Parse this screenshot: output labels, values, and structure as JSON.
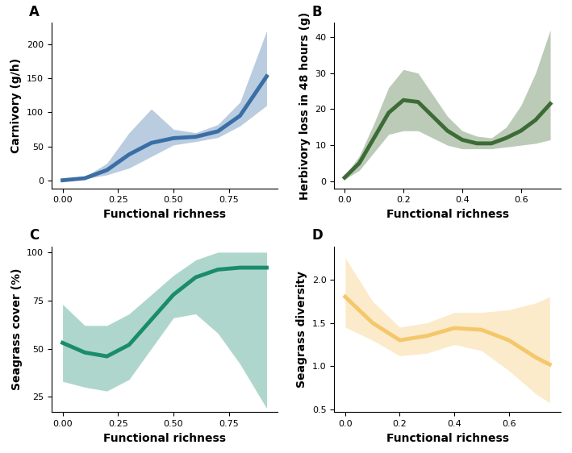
{
  "chart_data": [
    {
      "type": "line",
      "title": "A",
      "x_label": "Functional richness",
      "y_label": "Carnivory (g/h)",
      "color": "#3a6ea5",
      "x": [
        0,
        0.1,
        0.2,
        0.3,
        0.4,
        0.5,
        0.6,
        0.7,
        0.8,
        0.92
      ],
      "values": [
        0,
        3,
        15,
        38,
        55,
        62,
        64,
        72,
        95,
        153
      ],
      "lower": [
        0,
        2,
        8,
        18,
        35,
        52,
        57,
        63,
        80,
        110
      ],
      "upper": [
        1,
        5,
        25,
        70,
        105,
        75,
        70,
        82,
        115,
        220
      ],
      "xlim": [
        -0.05,
        0.97
      ],
      "ylim": [
        -12,
        232
      ],
      "xticks": [
        {
          "value": 0,
          "label": "0.00"
        },
        {
          "value": 0.25,
          "label": "0.25"
        },
        {
          "value": 0.5,
          "label": "0.50"
        },
        {
          "value": 0.75,
          "label": "0.75"
        }
      ],
      "yticks": [
        0,
        50,
        100,
        150,
        200
      ]
    },
    {
      "type": "line",
      "title": "B",
      "x_label": "Functional richness",
      "y_label": "Herbivory loss in 48 hours (g)",
      "color": "#3d6b35",
      "x": [
        0,
        0.05,
        0.1,
        0.15,
        0.2,
        0.25,
        0.3,
        0.35,
        0.4,
        0.45,
        0.5,
        0.55,
        0.6,
        0.65,
        0.7
      ],
      "values": [
        1,
        5,
        12,
        19,
        22.5,
        22,
        18,
        14,
        11.5,
        10.5,
        10.5,
        12,
        14,
        17,
        21.5
      ],
      "lower": [
        0.5,
        3,
        8,
        13,
        14,
        14,
        12,
        10,
        9,
        9,
        9,
        9.5,
        10,
        10.5,
        11.5
      ],
      "upper": [
        1.5,
        7,
        16,
        26,
        31,
        30,
        24,
        18,
        14,
        12.5,
        12,
        15,
        21,
        30,
        42
      ],
      "xlim": [
        -0.035,
        0.735
      ],
      "ylim": [
        -2,
        44
      ],
      "xticks": [
        0.0,
        0.2,
        0.4,
        0.6
      ],
      "yticks": [
        0,
        10,
        20,
        30,
        40
      ]
    },
    {
      "type": "line",
      "title": "C",
      "x_label": "Functional richness",
      "y_label": "Seagrass cover (%)",
      "color": "#1a8c6e",
      "x": [
        0,
        0.1,
        0.2,
        0.3,
        0.4,
        0.5,
        0.6,
        0.7,
        0.8,
        0.92
      ],
      "values": [
        53,
        48,
        46,
        52,
        65,
        78,
        87,
        91,
        92,
        92
      ],
      "lower": [
        33,
        30,
        28,
        34,
        50,
        66,
        68,
        58,
        42,
        19
      ],
      "upper": [
        73,
        62,
        62,
        68,
        78,
        88,
        96,
        100,
        100,
        100
      ],
      "xlim": [
        -0.05,
        0.97
      ],
      "ylim": [
        17,
        103
      ],
      "xticks": [
        {
          "value": 0,
          "label": "0.00"
        },
        {
          "value": 0.25,
          "label": "0.25"
        },
        {
          "value": 0.5,
          "label": "0.50"
        },
        {
          "value": 0.75,
          "label": "0.75"
        }
      ],
      "yticks": [
        25,
        50,
        75,
        100
      ]
    },
    {
      "type": "line",
      "title": "D",
      "x_label": "Functional richness",
      "y_label": "Seagrass diversity",
      "color": "#f5c76b",
      "x": [
        0,
        0.1,
        0.2,
        0.3,
        0.4,
        0.5,
        0.6,
        0.7,
        0.75
      ],
      "values": [
        1.8,
        1.5,
        1.3,
        1.35,
        1.44,
        1.42,
        1.3,
        1.1,
        1.02
      ],
      "lower": [
        1.45,
        1.3,
        1.12,
        1.15,
        1.25,
        1.18,
        0.95,
        0.68,
        0.58
      ],
      "upper": [
        2.25,
        1.75,
        1.45,
        1.5,
        1.62,
        1.62,
        1.65,
        1.73,
        1.8
      ],
      "xlim": [
        -0.04,
        0.79
      ],
      "ylim": [
        0.47,
        2.38
      ],
      "xticks": [
        0.0,
        0.2,
        0.4,
        0.6
      ],
      "yticks": [
        0.5,
        1.0,
        1.5,
        2.0
      ]
    }
  ]
}
